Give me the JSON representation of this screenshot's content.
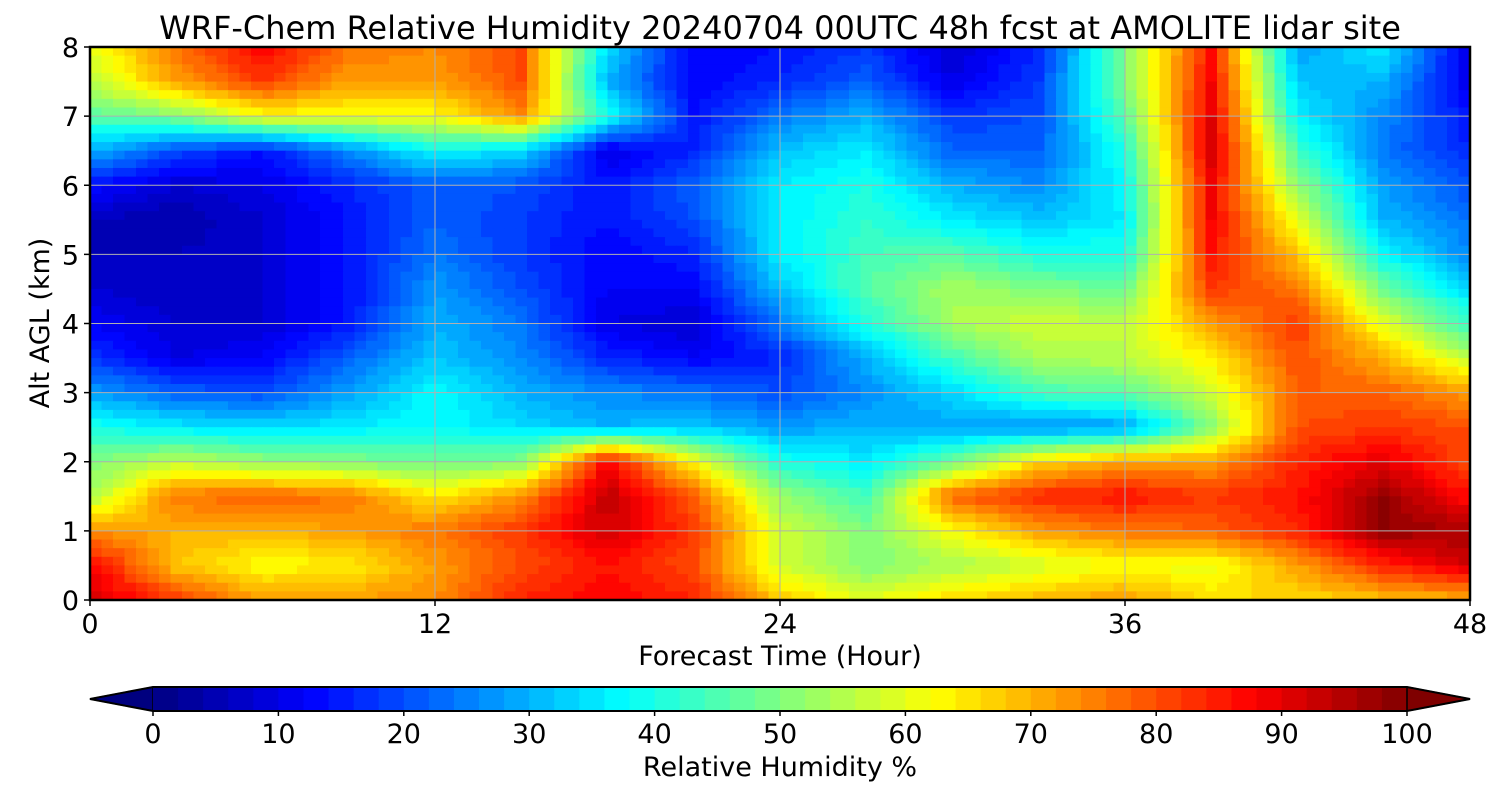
{
  "chart_data": {
    "type": "heatmap",
    "title": "WRF-Chem Relative Humidity 20240704 00UTC 48h fcst at AMOLITE lidar site",
    "xlabel": "Forecast Time (Hour)",
    "ylabel": "Alt AGL (km)",
    "xlim": [
      0,
      48
    ],
    "ylim": [
      0,
      8
    ],
    "x_ticks": [
      0,
      12,
      24,
      36,
      48
    ],
    "x_tick_labels": [
      "0",
      "12",
      "24",
      "36",
      "48"
    ],
    "y_ticks": [
      0,
      1,
      2,
      3,
      4,
      5,
      6,
      7,
      8
    ],
    "y_tick_labels": [
      "0",
      "1",
      "2",
      "3",
      "4",
      "5",
      "6",
      "7",
      "8"
    ],
    "grid": true,
    "x": [
      0,
      3,
      6,
      9,
      12,
      15,
      18,
      21,
      24,
      27,
      30,
      33,
      36,
      39,
      42,
      45,
      48
    ],
    "y": [
      0,
      0.5,
      1,
      1.5,
      2,
      2.5,
      3,
      3.5,
      4,
      4.5,
      5,
      5.5,
      6,
      6.5,
      7,
      7.5,
      8
    ],
    "z": [
      [
        92,
        82,
        72,
        72,
        74,
        84,
        88,
        84,
        68,
        60,
        66,
        70,
        72,
        66,
        66,
        68,
        70
      ],
      [
        88,
        68,
        62,
        64,
        72,
        80,
        86,
        80,
        58,
        50,
        54,
        58,
        62,
        60,
        72,
        84,
        92
      ],
      [
        74,
        70,
        70,
        72,
        76,
        82,
        92,
        82,
        58,
        50,
        62,
        72,
        76,
        78,
        84,
        98,
        96
      ],
      [
        54,
        76,
        78,
        76,
        64,
        74,
        94,
        78,
        52,
        44,
        78,
        84,
        86,
        82,
        86,
        98,
        86
      ],
      [
        50,
        56,
        52,
        50,
        48,
        50,
        88,
        62,
        40,
        36,
        48,
        66,
        72,
        72,
        84,
        90,
        80
      ],
      [
        40,
        36,
        34,
        36,
        38,
        34,
        30,
        32,
        28,
        30,
        28,
        26,
        28,
        50,
        80,
        82,
        80
      ],
      [
        28,
        22,
        20,
        28,
        38,
        30,
        26,
        24,
        20,
        26,
        34,
        44,
        46,
        58,
        78,
        78,
        72
      ],
      [
        18,
        10,
        12,
        22,
        32,
        26,
        16,
        12,
        16,
        30,
        44,
        54,
        56,
        64,
        80,
        70,
        56
      ],
      [
        12,
        8,
        8,
        14,
        30,
        24,
        10,
        8,
        24,
        40,
        54,
        58,
        56,
        72,
        82,
        60,
        42
      ],
      [
        8,
        6,
        8,
        14,
        28,
        20,
        12,
        12,
        32,
        46,
        54,
        50,
        48,
        82,
        76,
        48,
        34
      ],
      [
        6,
        6,
        8,
        14,
        24,
        18,
        12,
        16,
        36,
        44,
        46,
        40,
        40,
        86,
        68,
        38,
        26
      ],
      [
        6,
        4,
        8,
        14,
        22,
        18,
        14,
        20,
        36,
        42,
        36,
        32,
        36,
        88,
        60,
        30,
        24
      ],
      [
        14,
        8,
        10,
        16,
        22,
        20,
        14,
        22,
        36,
        40,
        30,
        26,
        38,
        88,
        52,
        28,
        20
      ],
      [
        30,
        20,
        14,
        26,
        38,
        34,
        10,
        16,
        32,
        36,
        22,
        22,
        40,
        92,
        44,
        24,
        16
      ],
      [
        46,
        50,
        62,
        62,
        62,
        74,
        40,
        14,
        24,
        30,
        18,
        20,
        46,
        90,
        36,
        26,
        14
      ],
      [
        56,
        72,
        82,
        72,
        72,
        80,
        30,
        12,
        16,
        22,
        10,
        18,
        50,
        88,
        32,
        30,
        10
      ],
      [
        60,
        76,
        88,
        76,
        74,
        80,
        34,
        12,
        14,
        18,
        8,
        16,
        50,
        86,
        28,
        36,
        10
      ]
    ],
    "colorbar": {
      "label": "Relative Humidity %",
      "min": 0,
      "max": 100,
      "ticks": [
        0,
        10,
        20,
        30,
        40,
        50,
        60,
        70,
        80,
        90,
        100
      ],
      "tick_labels": [
        "0",
        "10",
        "20",
        "30",
        "40",
        "50",
        "60",
        "70",
        "80",
        "90",
        "100"
      ],
      "extend": "both",
      "colormap": "jet"
    },
    "colors": {
      "under": "#00007f",
      "over": "#7f0000",
      "grid": "#b0b0b0"
    }
  }
}
